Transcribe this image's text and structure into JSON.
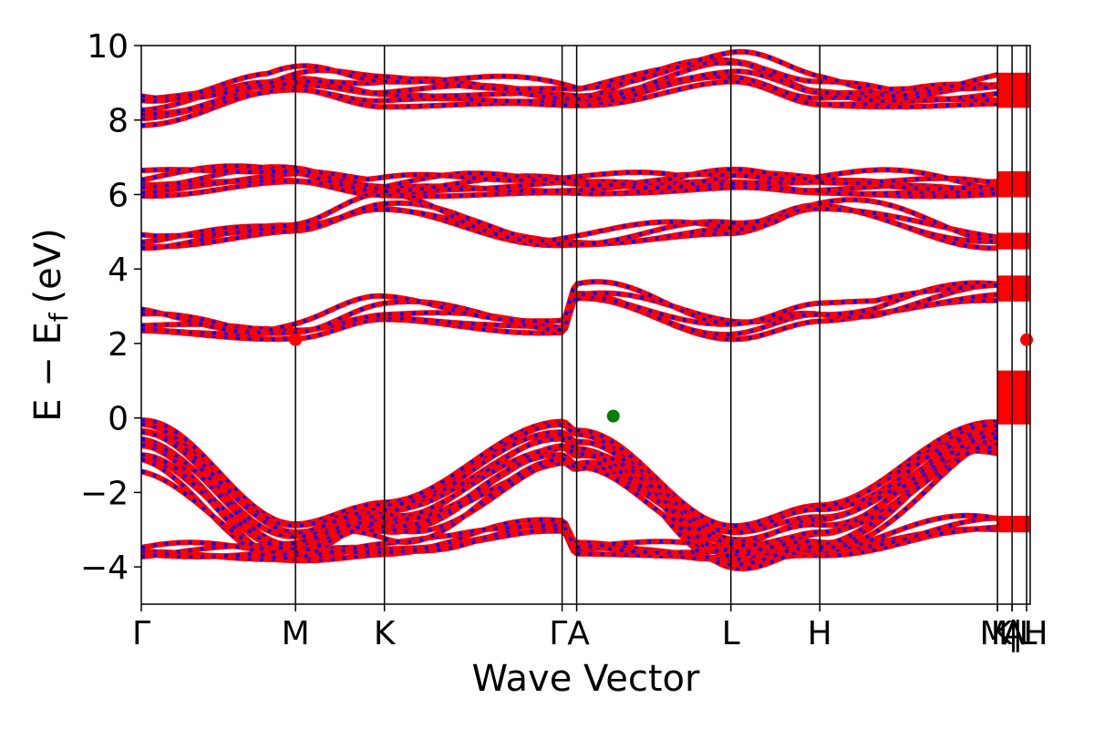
{
  "chart_data": {
    "type": "line",
    "title": "",
    "xlabel": "Wave Vector",
    "ylabel": "E − E",
    "ylabel_subscript": "f",
    "ylabel_unit": "(eV)",
    "ylim": [
      -5,
      10
    ],
    "yticks": [
      {
        "value": -4,
        "label": "−4"
      },
      {
        "value": -2,
        "label": "−2"
      },
      {
        "value": 0,
        "label": "0"
      },
      {
        "value": 2,
        "label": "2"
      },
      {
        "value": 4,
        "label": "4"
      },
      {
        "value": 6,
        "label": "6"
      },
      {
        "value": 8,
        "label": "8"
      },
      {
        "value": 10,
        "label": "10"
      }
    ],
    "kpath": [
      {
        "label": "Γ",
        "x": 0.0
      },
      {
        "label": "M",
        "x": 0.1735
      },
      {
        "label": "K",
        "x": 0.2735
      },
      {
        "label": "Γ",
        "x": 0.4734
      },
      {
        "label": "A",
        "x": 0.4898
      },
      {
        "label": "L",
        "x": 0.6633
      },
      {
        "label": "H",
        "x": 0.7633
      },
      {
        "label": "A",
        "x": 0.9632
      },
      {
        "label": "M",
        "x": 0.9632
      },
      {
        "label": "L",
        "x": 0.9796
      },
      {
        "label": "K",
        "x": 0.9796
      },
      {
        "label": "H",
        "x": 0.996
      }
    ],
    "kpath_printed": [
      "Γ",
      "M",
      "K",
      "ΓA",
      "L",
      "H",
      "A",
      "M|L",
      "K|H"
    ],
    "band_colors": [
      "#ff0000",
      "#0000ff"
    ],
    "cbm_marker": {
      "color": "#ff0000",
      "energy": 2.1,
      "positions": [
        0.1735,
        0.996
      ]
    },
    "vbm_marker": {
      "color": "#008000",
      "energy": 0.05,
      "position": 0.531
    },
    "band_groups": [
      {
        "base": [
          -3.7,
          -3.8,
          -3.65,
          -3.0,
          -3.6,
          -3.8,
          -3.65,
          -3.0
        ],
        "spread": 0.6,
        "count": 5
      },
      {
        "base": [
          -0.1,
          -2.8,
          -2.3,
          -0.05,
          -0.3,
          -2.9,
          -2.3,
          -0.1
        ],
        "spread": 2.6,
        "count": 14
      },
      {
        "base": [
          2.3,
          2.15,
          2.6,
          2.3,
          3.2,
          2.15,
          2.6,
          3.2
        ],
        "spread": 1.1,
        "count": 5
      },
      {
        "base": [
          4.6,
          5.0,
          5.6,
          4.6,
          4.6,
          5.0,
          5.6,
          4.6
        ],
        "spread": 0.6,
        "count": 4
      },
      {
        "base": [
          6.0,
          6.3,
          6.0,
          6.0,
          6.0,
          6.2,
          6.0,
          6.0
        ],
        "spread": 1.1,
        "count": 7
      },
      {
        "base": [
          7.9,
          8.8,
          8.4,
          8.4,
          8.4,
          9.0,
          8.4,
          8.4
        ],
        "spread": 1.6,
        "count": 8
      }
    ]
  }
}
